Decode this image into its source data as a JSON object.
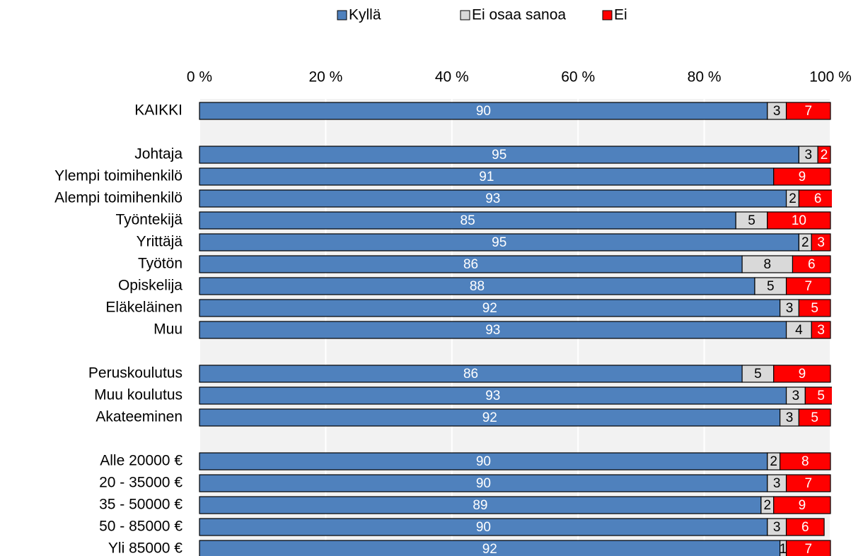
{
  "chart_data": {
    "type": "stacked_bar_horizontal",
    "categories": [
      "KAIKKI",
      null,
      "Johtaja",
      "Ylempi toimihenkilö",
      "Alempi toimihenkilö",
      "Työntekijä",
      "Yrittäjä",
      "Työtön",
      "Opiskelija",
      "Eläkeläinen",
      "Muu",
      null,
      "Peruskoulutus",
      "Muu koulutus",
      "Akateeminen",
      null,
      "Alle 20000 €",
      "20 - 35000 €",
      "35 - 50000 €",
      "50 - 85000 €",
      "Yli 85000 €"
    ],
    "series": [
      {
        "name": "Kyllä",
        "color": "#4f81bd",
        "values": [
          90,
          null,
          95,
          91,
          93,
          85,
          95,
          86,
          88,
          92,
          93,
          null,
          86,
          93,
          92,
          null,
          90,
          90,
          89,
          90,
          92
        ]
      },
      {
        "name": "Ei osaa sanoa",
        "color": "#d9d9d9",
        "values": [
          3,
          null,
          3,
          0,
          2,
          5,
          2,
          8,
          5,
          3,
          4,
          null,
          5,
          3,
          3,
          null,
          2,
          3,
          2,
          3,
          1
        ],
        "value_labels": [
          "3",
          null,
          "3",
          null,
          "2",
          "5",
          "2",
          "8",
          "5",
          "3",
          "4",
          null,
          "5",
          "3",
          "3",
          null,
          "2",
          "3",
          "2",
          "3",
          "1"
        ]
      },
      {
        "name": "Ei",
        "color": "#ff0000",
        "values": [
          7,
          null,
          2,
          9,
          6,
          10,
          3,
          6,
          7,
          5,
          3,
          null,
          9,
          5,
          5,
          null,
          8,
          7,
          9,
          6,
          7
        ]
      }
    ],
    "xlim": [
      0,
      100
    ],
    "xticks": [
      {
        "value": 0,
        "label": "0 %"
      },
      {
        "value": 20,
        "label": "20 %"
      },
      {
        "value": 40,
        "label": "40 %"
      },
      {
        "value": 60,
        "label": "60 %"
      },
      {
        "value": 80,
        "label": "80 %"
      },
      {
        "value": 100,
        "label": "100 %"
      }
    ],
    "grid": true,
    "legend": "top"
  }
}
